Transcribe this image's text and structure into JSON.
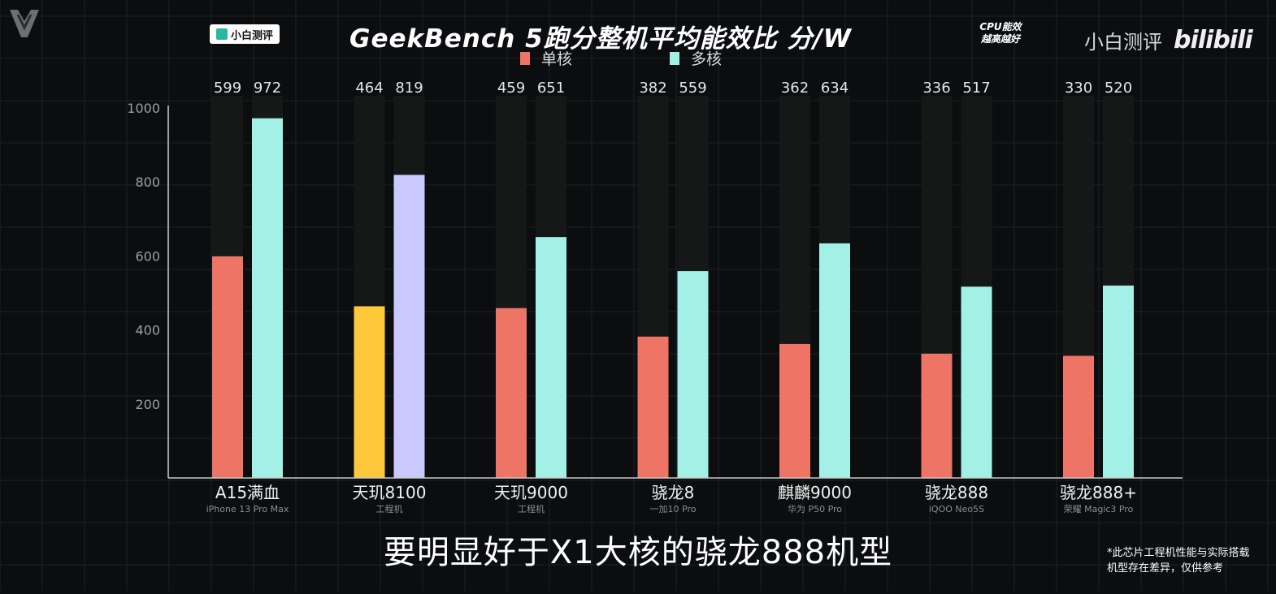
{
  "header": {
    "title": "GeekBench 5跑分整机平均能效比 分/W",
    "brand_badge": "小白测评",
    "cpu_note_line1": "CPU能效",
    "cpu_note_line2": "越高越好",
    "channel_name": "小白测评",
    "site_name": "bilibili"
  },
  "caption": {
    "subtitle": "要明显好于X1大核的骁龙888机型",
    "disclaimer_line1": "*此芯片工程机性能与实际搭载",
    "disclaimer_line2": "机型存在差异，仅供参考"
  },
  "colors": {
    "single": "#ee7466",
    "multi": "#a3f1e6",
    "single_highlight": "#ffc83a",
    "multi_highlight": "#c9c8ff",
    "track": "#161818",
    "axis": "#c8c8c8"
  },
  "chart_data": {
    "type": "bar",
    "title": "GeekBench 5跑分整机平均能效比 分/W",
    "categories": [
      "A15满血",
      "天玑8100",
      "天玑9000",
      "骁龙8",
      "麒麟9000",
      "骁龙888",
      "骁龙888+"
    ],
    "category_sublabels": [
      "iPhone 13 Pro Max",
      "工程机",
      "工程机",
      "一加10 Pro",
      "华为 P50 Pro",
      "iQOO Neo5S",
      "荣耀 Magic3 Pro"
    ],
    "series": [
      {
        "name": "单核",
        "values": [
          599,
          464,
          459,
          382,
          362,
          336,
          330
        ]
      },
      {
        "name": "多核",
        "values": [
          972,
          819,
          651,
          559,
          634,
          517,
          520
        ]
      }
    ],
    "highlight_category": "天玑8100",
    "yticks": [
      200,
      400,
      600,
      800,
      1000
    ],
    "ylim": [
      0,
      1050
    ],
    "grid": true,
    "legend": "top-center"
  }
}
